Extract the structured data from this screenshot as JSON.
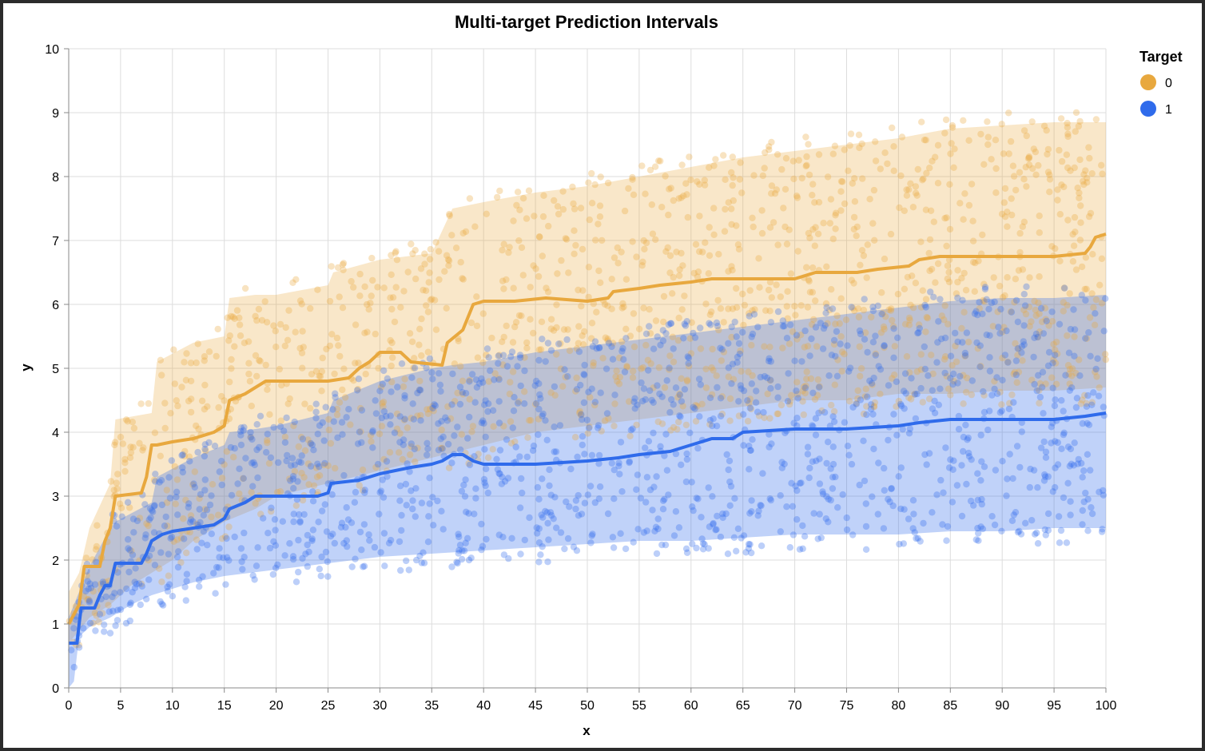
{
  "chart_data": {
    "type": "line",
    "title": "Multi-target Prediction Intervals",
    "xlabel": "x",
    "ylabel": "y",
    "xlim": [
      0,
      100
    ],
    "ylim": [
      0,
      10
    ],
    "xticks": [
      0,
      5,
      10,
      15,
      20,
      25,
      30,
      35,
      40,
      45,
      50,
      55,
      60,
      65,
      70,
      75,
      80,
      85,
      90,
      95,
      100
    ],
    "yticks": [
      0,
      1,
      2,
      3,
      4,
      5,
      6,
      7,
      8,
      9,
      10
    ],
    "grid": true,
    "legend": {
      "title": "Target",
      "placement": "top-right"
    },
    "series": [
      {
        "name": "0",
        "color": "#E8A83E",
        "median": [
          [
            0,
            1.0
          ],
          [
            0.5,
            1.15
          ],
          [
            1,
            1.3
          ],
          [
            1.5,
            1.9
          ],
          [
            3,
            1.9
          ],
          [
            3.5,
            2.3
          ],
          [
            4,
            2.5
          ],
          [
            4.5,
            3.0
          ],
          [
            7,
            3.05
          ],
          [
            7.5,
            3.3
          ],
          [
            8,
            3.8
          ],
          [
            8.5,
            3.8
          ],
          [
            10,
            3.85
          ],
          [
            12,
            3.9
          ],
          [
            14,
            4.0
          ],
          [
            15,
            4.1
          ],
          [
            15.5,
            4.5
          ],
          [
            17,
            4.6
          ],
          [
            18,
            4.7
          ],
          [
            19,
            4.8
          ],
          [
            22,
            4.8
          ],
          [
            25,
            4.8
          ],
          [
            27,
            4.85
          ],
          [
            28,
            5.0
          ],
          [
            29,
            5.1
          ],
          [
            30,
            5.25
          ],
          [
            32,
            5.25
          ],
          [
            33,
            5.1
          ],
          [
            36,
            5.05
          ],
          [
            36.5,
            5.4
          ],
          [
            38,
            5.6
          ],
          [
            39,
            6.0
          ],
          [
            40,
            6.05
          ],
          [
            43,
            6.05
          ],
          [
            46,
            6.1
          ],
          [
            50,
            6.05
          ],
          [
            52,
            6.1
          ],
          [
            52.5,
            6.2
          ],
          [
            55,
            6.25
          ],
          [
            57,
            6.3
          ],
          [
            60,
            6.35
          ],
          [
            62,
            6.4
          ],
          [
            65,
            6.4
          ],
          [
            70,
            6.4
          ],
          [
            72,
            6.5
          ],
          [
            76,
            6.5
          ],
          [
            78,
            6.55
          ],
          [
            81,
            6.6
          ],
          [
            82,
            6.7
          ],
          [
            84,
            6.75
          ],
          [
            90,
            6.75
          ],
          [
            95,
            6.75
          ],
          [
            98,
            6.8
          ],
          [
            98.5,
            6.9
          ],
          [
            99,
            7.05
          ],
          [
            100,
            7.1
          ]
        ],
        "band_lower": [
          [
            0,
            0.7
          ],
          [
            1,
            0.9
          ],
          [
            2,
            1.1
          ],
          [
            4,
            1.3
          ],
          [
            6,
            1.6
          ],
          [
            8,
            1.8
          ],
          [
            10,
            2.0
          ],
          [
            12,
            2.3
          ],
          [
            15,
            2.6
          ],
          [
            18,
            2.8
          ],
          [
            20,
            3.0
          ],
          [
            25,
            3.2
          ],
          [
            30,
            3.4
          ],
          [
            35,
            3.6
          ],
          [
            40,
            3.8
          ],
          [
            45,
            4.0
          ],
          [
            50,
            4.1
          ],
          [
            55,
            4.2
          ],
          [
            60,
            4.3
          ],
          [
            65,
            4.4
          ],
          [
            70,
            4.5
          ],
          [
            75,
            4.5
          ],
          [
            80,
            4.6
          ],
          [
            85,
            4.6
          ],
          [
            90,
            4.65
          ],
          [
            95,
            4.65
          ],
          [
            100,
            4.7
          ]
        ],
        "band_upper": [
          [
            0,
            1.5
          ],
          [
            1,
            1.8
          ],
          [
            2,
            2.5
          ],
          [
            4,
            3.2
          ],
          [
            4.5,
            4.2
          ],
          [
            8,
            4.3
          ],
          [
            8.5,
            5.1
          ],
          [
            12,
            5.4
          ],
          [
            15,
            5.5
          ],
          [
            15.5,
            6.1
          ],
          [
            18,
            6.15
          ],
          [
            20,
            6.15
          ],
          [
            25,
            6.3
          ],
          [
            25.5,
            6.5
          ],
          [
            30,
            6.7
          ],
          [
            35,
            6.8
          ],
          [
            37,
            7.5
          ],
          [
            40,
            7.6
          ],
          [
            45,
            7.75
          ],
          [
            50,
            7.85
          ],
          [
            55,
            8.0
          ],
          [
            60,
            8.15
          ],
          [
            65,
            8.3
          ],
          [
            70,
            8.4
          ],
          [
            75,
            8.5
          ],
          [
            80,
            8.6
          ],
          [
            85,
            8.75
          ],
          [
            90,
            8.8
          ],
          [
            95,
            8.85
          ],
          [
            100,
            8.85
          ]
        ]
      },
      {
        "name": "1",
        "color": "#2F6BEB",
        "median": [
          [
            0,
            0.7
          ],
          [
            0.8,
            0.7
          ],
          [
            1,
            1.0
          ],
          [
            1.2,
            1.25
          ],
          [
            2.5,
            1.25
          ],
          [
            3,
            1.45
          ],
          [
            3.5,
            1.6
          ],
          [
            4,
            1.6
          ],
          [
            4.5,
            1.95
          ],
          [
            7,
            1.95
          ],
          [
            7.5,
            2.1
          ],
          [
            8,
            2.3
          ],
          [
            9,
            2.4
          ],
          [
            10,
            2.45
          ],
          [
            12,
            2.5
          ],
          [
            14,
            2.55
          ],
          [
            15,
            2.65
          ],
          [
            15.5,
            2.8
          ],
          [
            17,
            2.9
          ],
          [
            18,
            3.0
          ],
          [
            20,
            3.0
          ],
          [
            24,
            3.0
          ],
          [
            25,
            3.05
          ],
          [
            25.3,
            3.2
          ],
          [
            28,
            3.25
          ],
          [
            30,
            3.35
          ],
          [
            33,
            3.45
          ],
          [
            35,
            3.5
          ],
          [
            36,
            3.55
          ],
          [
            37,
            3.65
          ],
          [
            38,
            3.65
          ],
          [
            39,
            3.55
          ],
          [
            40,
            3.5
          ],
          [
            45,
            3.5
          ],
          [
            50,
            3.55
          ],
          [
            53,
            3.6
          ],
          [
            55,
            3.65
          ],
          [
            58,
            3.7
          ],
          [
            60,
            3.8
          ],
          [
            62,
            3.9
          ],
          [
            64,
            3.9
          ],
          [
            65,
            4.0
          ],
          [
            70,
            4.05
          ],
          [
            75,
            4.05
          ],
          [
            80,
            4.1
          ],
          [
            82,
            4.15
          ],
          [
            85,
            4.2
          ],
          [
            90,
            4.2
          ],
          [
            95,
            4.2
          ],
          [
            98,
            4.25
          ],
          [
            100,
            4.3
          ]
        ],
        "band_lower": [
          [
            0,
            0.0
          ],
          [
            0.5,
            0.1
          ],
          [
            1,
            0.8
          ],
          [
            2,
            0.95
          ],
          [
            4,
            1.1
          ],
          [
            6,
            1.3
          ],
          [
            8,
            1.45
          ],
          [
            10,
            1.55
          ],
          [
            12,
            1.65
          ],
          [
            15,
            1.75
          ],
          [
            20,
            1.85
          ],
          [
            25,
            1.95
          ],
          [
            30,
            2.05
          ],
          [
            35,
            2.1
          ],
          [
            40,
            2.15
          ],
          [
            45,
            2.2
          ],
          [
            50,
            2.25
          ],
          [
            55,
            2.3
          ],
          [
            60,
            2.3
          ],
          [
            65,
            2.35
          ],
          [
            70,
            2.4
          ],
          [
            75,
            2.4
          ],
          [
            80,
            2.4
          ],
          [
            85,
            2.45
          ],
          [
            90,
            2.45
          ],
          [
            95,
            2.5
          ],
          [
            100,
            2.5
          ]
        ],
        "band_upper": [
          [
            0,
            1.1
          ],
          [
            1,
            1.5
          ],
          [
            2,
            1.9
          ],
          [
            4,
            2.5
          ],
          [
            4.5,
            2.6
          ],
          [
            8,
            2.9
          ],
          [
            8.5,
            3.3
          ],
          [
            12,
            3.6
          ],
          [
            15,
            3.8
          ],
          [
            15.5,
            4.0
          ],
          [
            18,
            4.05
          ],
          [
            20,
            4.1
          ],
          [
            25,
            4.3
          ],
          [
            25.5,
            4.5
          ],
          [
            30,
            4.8
          ],
          [
            35,
            5.0
          ],
          [
            37,
            5.05
          ],
          [
            40,
            5.1
          ],
          [
            45,
            5.25
          ],
          [
            50,
            5.35
          ],
          [
            55,
            5.45
          ],
          [
            60,
            5.55
          ],
          [
            65,
            5.65
          ],
          [
            70,
            5.75
          ],
          [
            75,
            5.85
          ],
          [
            80,
            5.95
          ],
          [
            85,
            6.05
          ],
          [
            90,
            6.1
          ],
          [
            95,
            6.1
          ],
          [
            100,
            6.15
          ]
        ]
      }
    ]
  }
}
